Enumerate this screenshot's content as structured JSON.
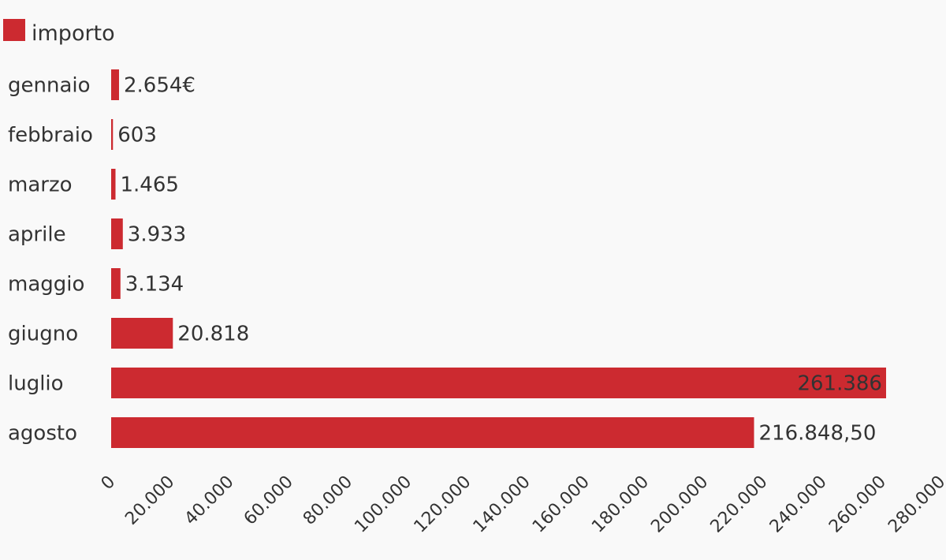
{
  "chart_data": {
    "type": "bar",
    "orientation": "horizontal",
    "categories": [
      "gennaio",
      "febbraio",
      "marzo",
      "aprile",
      "maggio",
      "giugno",
      "luglio",
      "agosto"
    ],
    "series": [
      {
        "name": "importo",
        "color": "#cc2a30",
        "values": [
          2654,
          603,
          1465,
          3933,
          3134,
          20818,
          261386,
          216848.5
        ],
        "value_labels": [
          "2.654€",
          "603",
          "1.465",
          "3.933",
          "3.134",
          "20.818",
          "261.386",
          "216.848,50"
        ]
      }
    ],
    "xlim": [
      0,
      280000
    ],
    "xticks": [
      0,
      20000,
      40000,
      60000,
      80000,
      100000,
      120000,
      140000,
      160000,
      180000,
      200000,
      220000,
      240000,
      260000,
      280000
    ],
    "xtick_labels": [
      "0",
      "20.000",
      "40.000",
      "60.000",
      "80.000",
      "100.000",
      "120.000",
      "140.000",
      "160.000",
      "180.000",
      "200.000",
      "220.000",
      "240.000",
      "260.000",
      "280.000"
    ],
    "title": "",
    "xlabel": "",
    "ylabel": "",
    "legend_position": "top-left",
    "grid": false
  }
}
